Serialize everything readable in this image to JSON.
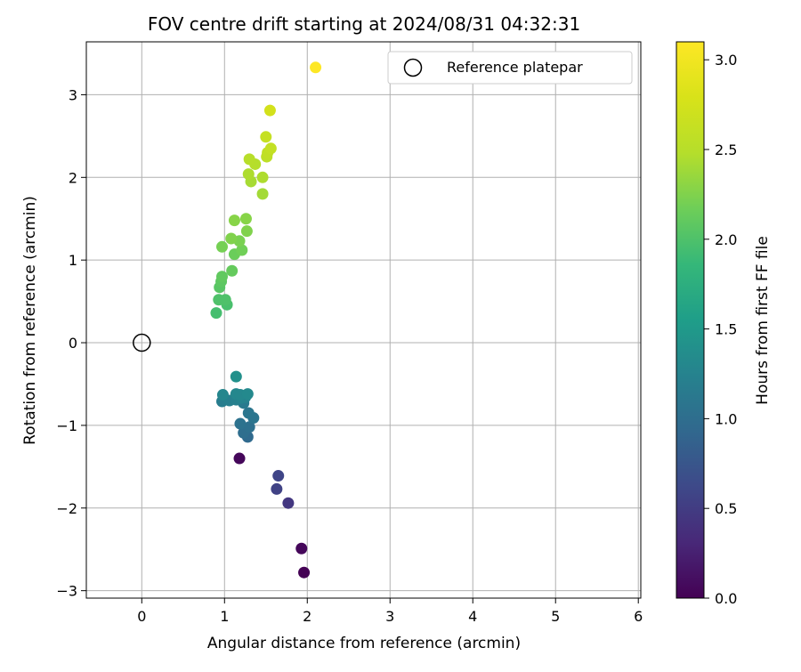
{
  "chart_data": {
    "type": "scatter",
    "title": "FOV centre drift starting at 2024/08/31 04:32:31",
    "xlabel": "Angular distance from reference (arcmin)",
    "ylabel": "Rotation from reference (arcmin)",
    "xlim": [
      -0.67,
      6.03
    ],
    "ylim": [
      -3.09,
      3.64
    ],
    "xticks": [
      0,
      1,
      2,
      3,
      4,
      5,
      6
    ],
    "yticks": [
      -3,
      -2,
      -1,
      0,
      1,
      2,
      3
    ],
    "grid": true,
    "legend": {
      "position": "top-right",
      "entries": [
        "Reference platepar"
      ]
    },
    "reference_point": {
      "label": "Reference platepar",
      "x": 0,
      "y": 0
    },
    "colorbar": {
      "label": "Hours from first FF file",
      "colormap": "viridis",
      "range": [
        0.0,
        3.1
      ],
      "ticks": [
        "0.0",
        "0.5",
        "1.0",
        "1.5",
        "2.0",
        "2.5",
        "3.0"
      ]
    },
    "points": [
      {
        "x": 1.96,
        "y": -2.78,
        "c": 0.0
      },
      {
        "x": 1.93,
        "y": -2.49,
        "c": 0.05
      },
      {
        "x": 1.18,
        "y": -1.4,
        "c": 0.05
      },
      {
        "x": 1.77,
        "y": -1.94,
        "c": 0.45
      },
      {
        "x": 1.63,
        "y": -1.77,
        "c": 0.55
      },
      {
        "x": 1.65,
        "y": -1.61,
        "c": 0.58
      },
      {
        "x": 1.28,
        "y": -1.14,
        "c": 0.95
      },
      {
        "x": 1.23,
        "y": -1.09,
        "c": 1.0
      },
      {
        "x": 1.3,
        "y": -1.02,
        "c": 1.02
      },
      {
        "x": 1.19,
        "y": -0.98,
        "c": 1.05
      },
      {
        "x": 1.35,
        "y": -0.91,
        "c": 1.08
      },
      {
        "x": 1.29,
        "y": -0.85,
        "c": 1.1
      },
      {
        "x": 1.23,
        "y": -0.73,
        "c": 1.15
      },
      {
        "x": 0.97,
        "y": -0.71,
        "c": 1.18
      },
      {
        "x": 1.06,
        "y": -0.7,
        "c": 1.2
      },
      {
        "x": 1.14,
        "y": -0.69,
        "c": 1.22
      },
      {
        "x": 1.2,
        "y": -0.67,
        "c": 1.25
      },
      {
        "x": 1.25,
        "y": -0.66,
        "c": 1.25
      },
      {
        "x": 0.98,
        "y": -0.63,
        "c": 1.28
      },
      {
        "x": 1.14,
        "y": -0.62,
        "c": 1.3
      },
      {
        "x": 1.19,
        "y": -0.63,
        "c": 1.3
      },
      {
        "x": 1.28,
        "y": -0.62,
        "c": 1.32
      },
      {
        "x": 1.14,
        "y": -0.41,
        "c": 1.4
      },
      {
        "x": 0.9,
        "y": 0.36,
        "c": 1.95
      },
      {
        "x": 1.03,
        "y": 0.46,
        "c": 1.97
      },
      {
        "x": 0.93,
        "y": 0.52,
        "c": 2.0
      },
      {
        "x": 1.01,
        "y": 0.52,
        "c": 2.0
      },
      {
        "x": 0.94,
        "y": 0.67,
        "c": 2.05
      },
      {
        "x": 0.96,
        "y": 0.74,
        "c": 2.08
      },
      {
        "x": 0.97,
        "y": 0.8,
        "c": 2.1
      },
      {
        "x": 1.09,
        "y": 0.87,
        "c": 2.12
      },
      {
        "x": 1.12,
        "y": 1.07,
        "c": 2.15
      },
      {
        "x": 1.21,
        "y": 1.12,
        "c": 2.18
      },
      {
        "x": 0.97,
        "y": 1.16,
        "c": 2.2
      },
      {
        "x": 1.18,
        "y": 1.23,
        "c": 2.22
      },
      {
        "x": 1.08,
        "y": 1.26,
        "c": 2.25
      },
      {
        "x": 1.27,
        "y": 1.35,
        "c": 2.25
      },
      {
        "x": 1.12,
        "y": 1.48,
        "c": 2.28
      },
      {
        "x": 1.26,
        "y": 1.5,
        "c": 2.28
      },
      {
        "x": 1.46,
        "y": 1.8,
        "c": 2.4
      },
      {
        "x": 1.32,
        "y": 1.95,
        "c": 2.42
      },
      {
        "x": 1.46,
        "y": 2.0,
        "c": 2.45
      },
      {
        "x": 1.29,
        "y": 2.04,
        "c": 2.45
      },
      {
        "x": 1.37,
        "y": 2.16,
        "c": 2.48
      },
      {
        "x": 1.3,
        "y": 2.22,
        "c": 2.5
      },
      {
        "x": 1.51,
        "y": 2.25,
        "c": 2.55
      },
      {
        "x": 1.52,
        "y": 2.3,
        "c": 2.58
      },
      {
        "x": 1.56,
        "y": 2.35,
        "c": 2.6
      },
      {
        "x": 1.5,
        "y": 2.49,
        "c": 2.62
      },
      {
        "x": 1.55,
        "y": 2.81,
        "c": 2.75
      },
      {
        "x": 2.1,
        "y": 3.33,
        "c": 3.1
      }
    ]
  }
}
